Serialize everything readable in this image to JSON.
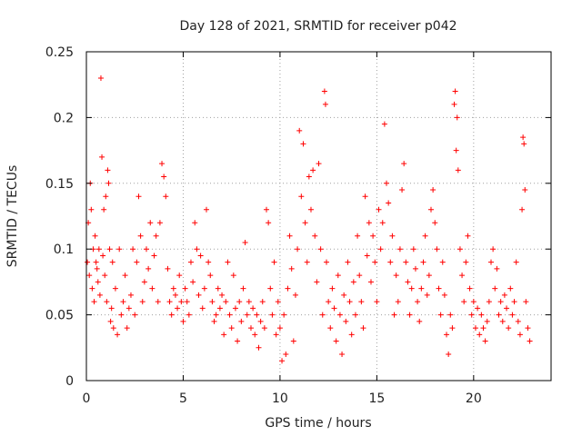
{
  "chart_data": {
    "type": "scatter",
    "title": "Day 128 of 2021, SRMTID for receiver p042",
    "xlabel": "GPS time / hours",
    "ylabel": "SRMTID / TECUs",
    "xlim": [
      0,
      24
    ],
    "ylim": [
      0,
      0.25
    ],
    "x_ticks": [
      0,
      5,
      10,
      15,
      20
    ],
    "x_tick_labels": [
      "0",
      "5",
      "10",
      "15",
      "20"
    ],
    "y_ticks": [
      0,
      0.05,
      0.1,
      0.15,
      0.2,
      0.25
    ],
    "y_tick_labels": [
      "0",
      "0.05",
      "0.1",
      "0.15",
      "0.2",
      "0.25"
    ],
    "grid": true,
    "marker": "plus",
    "color": "#ff0000",
    "series": [
      {
        "name": "SRMTID",
        "points": [
          [
            0.05,
            0.09
          ],
          [
            0.1,
            0.12
          ],
          [
            0.15,
            0.08
          ],
          [
            0.2,
            0.15
          ],
          [
            0.25,
            0.13
          ],
          [
            0.3,
            0.07
          ],
          [
            0.35,
            0.1
          ],
          [
            0.4,
            0.06
          ],
          [
            0.45,
            0.11
          ],
          [
            0.5,
            0.09
          ],
          [
            0.55,
            0.085
          ],
          [
            0.6,
            0.075
          ],
          [
            0.65,
            0.1
          ],
          [
            0.7,
            0.065
          ],
          [
            0.75,
            0.23
          ],
          [
            0.8,
            0.17
          ],
          [
            0.85,
            0.095
          ],
          [
            0.9,
            0.13
          ],
          [
            0.95,
            0.08
          ],
          [
            1.0,
            0.14
          ],
          [
            1.05,
            0.06
          ],
          [
            1.1,
            0.16
          ],
          [
            1.15,
            0.15
          ],
          [
            1.2,
            0.1
          ],
          [
            1.25,
            0.045
          ],
          [
            1.3,
            0.055
          ],
          [
            1.35,
            0.09
          ],
          [
            1.4,
            0.04
          ],
          [
            1.5,
            0.07
          ],
          [
            1.6,
            0.035
          ],
          [
            1.7,
            0.1
          ],
          [
            1.8,
            0.05
          ],
          [
            1.9,
            0.06
          ],
          [
            2.0,
            0.08
          ],
          [
            2.1,
            0.04
          ],
          [
            2.2,
            0.055
          ],
          [
            2.3,
            0.065
          ],
          [
            2.4,
            0.1
          ],
          [
            2.5,
            0.05
          ],
          [
            2.6,
            0.09
          ],
          [
            2.7,
            0.14
          ],
          [
            2.8,
            0.11
          ],
          [
            2.9,
            0.06
          ],
          [
            3.0,
            0.075
          ],
          [
            3.1,
            0.1
          ],
          [
            3.2,
            0.085
          ],
          [
            3.3,
            0.12
          ],
          [
            3.4,
            0.07
          ],
          [
            3.5,
            0.095
          ],
          [
            3.6,
            0.11
          ],
          [
            3.7,
            0.06
          ],
          [
            3.8,
            0.12
          ],
          [
            3.9,
            0.165
          ],
          [
            4.0,
            0.155
          ],
          [
            4.1,
            0.14
          ],
          [
            4.2,
            0.085
          ],
          [
            4.3,
            0.06
          ],
          [
            4.4,
            0.05
          ],
          [
            4.5,
            0.07
          ],
          [
            4.6,
            0.065
          ],
          [
            4.7,
            0.055
          ],
          [
            4.8,
            0.08
          ],
          [
            4.9,
            0.06
          ],
          [
            5.0,
            0.045
          ],
          [
            5.1,
            0.07
          ],
          [
            5.2,
            0.06
          ],
          [
            5.3,
            0.05
          ],
          [
            5.4,
            0.09
          ],
          [
            5.5,
            0.075
          ],
          [
            5.6,
            0.12
          ],
          [
            5.7,
            0.1
          ],
          [
            5.8,
            0.065
          ],
          [
            5.9,
            0.095
          ],
          [
            6.0,
            0.055
          ],
          [
            6.1,
            0.07
          ],
          [
            6.2,
            0.13
          ],
          [
            6.3,
            0.09
          ],
          [
            6.4,
            0.08
          ],
          [
            6.5,
            0.06
          ],
          [
            6.6,
            0.045
          ],
          [
            6.7,
            0.05
          ],
          [
            6.8,
            0.07
          ],
          [
            6.9,
            0.055
          ],
          [
            7.0,
            0.065
          ],
          [
            7.1,
            0.035
          ],
          [
            7.2,
            0.06
          ],
          [
            7.3,
            0.09
          ],
          [
            7.4,
            0.05
          ],
          [
            7.5,
            0.04
          ],
          [
            7.6,
            0.08
          ],
          [
            7.7,
            0.055
          ],
          [
            7.8,
            0.03
          ],
          [
            7.9,
            0.06
          ],
          [
            8.0,
            0.045
          ],
          [
            8.1,
            0.07
          ],
          [
            8.2,
            0.105
          ],
          [
            8.3,
            0.05
          ],
          [
            8.4,
            0.06
          ],
          [
            8.5,
            0.04
          ],
          [
            8.6,
            0.055
          ],
          [
            8.7,
            0.035
          ],
          [
            8.8,
            0.05
          ],
          [
            8.9,
            0.025
          ],
          [
            9.0,
            0.045
          ],
          [
            9.1,
            0.06
          ],
          [
            9.2,
            0.04
          ],
          [
            9.3,
            0.13
          ],
          [
            9.4,
            0.12
          ],
          [
            9.5,
            0.07
          ],
          [
            9.6,
            0.05
          ],
          [
            9.7,
            0.09
          ],
          [
            9.8,
            0.035
          ],
          [
            9.9,
            0.06
          ],
          [
            10.0,
            0.04
          ],
          [
            10.1,
            0.015
          ],
          [
            10.2,
            0.05
          ],
          [
            10.3,
            0.02
          ],
          [
            10.4,
            0.07
          ],
          [
            10.5,
            0.11
          ],
          [
            10.6,
            0.085
          ],
          [
            10.7,
            0.03
          ],
          [
            10.8,
            0.065
          ],
          [
            10.9,
            0.1
          ],
          [
            11.0,
            0.19
          ],
          [
            11.1,
            0.14
          ],
          [
            11.2,
            0.18
          ],
          [
            11.3,
            0.12
          ],
          [
            11.4,
            0.09
          ],
          [
            11.5,
            0.155
          ],
          [
            11.6,
            0.13
          ],
          [
            11.7,
            0.16
          ],
          [
            11.8,
            0.11
          ],
          [
            11.9,
            0.075
          ],
          [
            12.0,
            0.165
          ],
          [
            12.1,
            0.1
          ],
          [
            12.2,
            0.05
          ],
          [
            12.3,
            0.22
          ],
          [
            12.35,
            0.21
          ],
          [
            12.4,
            0.09
          ],
          [
            12.5,
            0.06
          ],
          [
            12.6,
            0.04
          ],
          [
            12.7,
            0.07
          ],
          [
            12.8,
            0.055
          ],
          [
            12.9,
            0.03
          ],
          [
            13.0,
            0.08
          ],
          [
            13.1,
            0.05
          ],
          [
            13.2,
            0.02
          ],
          [
            13.3,
            0.065
          ],
          [
            13.4,
            0.045
          ],
          [
            13.5,
            0.09
          ],
          [
            13.6,
            0.06
          ],
          [
            13.7,
            0.035
          ],
          [
            13.8,
            0.075
          ],
          [
            13.9,
            0.05
          ],
          [
            14.0,
            0.11
          ],
          [
            14.1,
            0.08
          ],
          [
            14.2,
            0.06
          ],
          [
            14.3,
            0.04
          ],
          [
            14.4,
            0.14
          ],
          [
            14.5,
            0.095
          ],
          [
            14.6,
            0.12
          ],
          [
            14.7,
            0.075
          ],
          [
            14.8,
            0.11
          ],
          [
            14.9,
            0.09
          ],
          [
            15.0,
            0.06
          ],
          [
            15.1,
            0.13
          ],
          [
            15.2,
            0.1
          ],
          [
            15.3,
            0.12
          ],
          [
            15.4,
            0.195
          ],
          [
            15.5,
            0.15
          ],
          [
            15.6,
            0.135
          ],
          [
            15.7,
            0.09
          ],
          [
            15.8,
            0.11
          ],
          [
            15.9,
            0.05
          ],
          [
            16.0,
            0.08
          ],
          [
            16.1,
            0.06
          ],
          [
            16.2,
            0.1
          ],
          [
            16.3,
            0.145
          ],
          [
            16.4,
            0.165
          ],
          [
            16.5,
            0.09
          ],
          [
            16.6,
            0.075
          ],
          [
            16.7,
            0.05
          ],
          [
            16.8,
            0.07
          ],
          [
            16.9,
            0.1
          ],
          [
            17.0,
            0.085
          ],
          [
            17.1,
            0.06
          ],
          [
            17.2,
            0.045
          ],
          [
            17.3,
            0.07
          ],
          [
            17.4,
            0.09
          ],
          [
            17.5,
            0.11
          ],
          [
            17.6,
            0.065
          ],
          [
            17.7,
            0.08
          ],
          [
            17.8,
            0.13
          ],
          [
            17.9,
            0.145
          ],
          [
            18.0,
            0.12
          ],
          [
            18.1,
            0.1
          ],
          [
            18.2,
            0.07
          ],
          [
            18.3,
            0.05
          ],
          [
            18.4,
            0.09
          ],
          [
            18.5,
            0.065
          ],
          [
            18.6,
            0.035
          ],
          [
            18.7,
            0.02
          ],
          [
            18.8,
            0.05
          ],
          [
            18.9,
            0.04
          ],
          [
            19.0,
            0.21
          ],
          [
            19.05,
            0.22
          ],
          [
            19.1,
            0.175
          ],
          [
            19.15,
            0.2
          ],
          [
            19.2,
            0.16
          ],
          [
            19.3,
            0.1
          ],
          [
            19.4,
            0.08
          ],
          [
            19.5,
            0.06
          ],
          [
            19.6,
            0.09
          ],
          [
            19.7,
            0.11
          ],
          [
            19.8,
            0.07
          ],
          [
            19.9,
            0.05
          ],
          [
            20.0,
            0.06
          ],
          [
            20.1,
            0.04
          ],
          [
            20.2,
            0.055
          ],
          [
            20.3,
            0.035
          ],
          [
            20.4,
            0.05
          ],
          [
            20.5,
            0.04
          ],
          [
            20.6,
            0.03
          ],
          [
            20.7,
            0.045
          ],
          [
            20.8,
            0.06
          ],
          [
            20.9,
            0.09
          ],
          [
            21.0,
            0.1
          ],
          [
            21.1,
            0.07
          ],
          [
            21.2,
            0.085
          ],
          [
            21.3,
            0.05
          ],
          [
            21.4,
            0.06
          ],
          [
            21.5,
            0.045
          ],
          [
            21.6,
            0.065
          ],
          [
            21.7,
            0.055
          ],
          [
            21.8,
            0.04
          ],
          [
            21.9,
            0.07
          ],
          [
            22.0,
            0.05
          ],
          [
            22.1,
            0.06
          ],
          [
            22.2,
            0.09
          ],
          [
            22.3,
            0.045
          ],
          [
            22.4,
            0.035
          ],
          [
            22.5,
            0.13
          ],
          [
            22.55,
            0.185
          ],
          [
            22.6,
            0.18
          ],
          [
            22.65,
            0.145
          ],
          [
            22.7,
            0.06
          ],
          [
            22.8,
            0.04
          ],
          [
            22.9,
            0.03
          ]
        ]
      }
    ]
  }
}
